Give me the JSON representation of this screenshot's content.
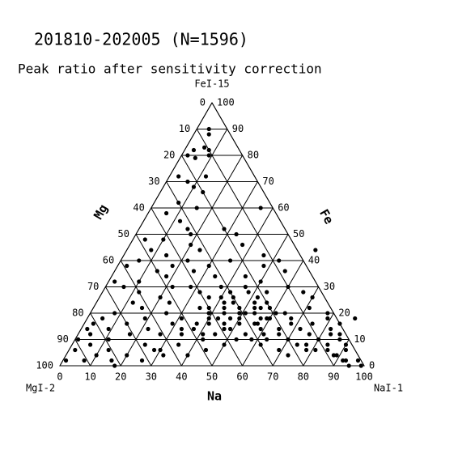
{
  "chart_data": {
    "type": "ternary",
    "title": "201810-202005 (N=1596)",
    "subtitle": "Peak ratio after sensitivity correction",
    "vertex_top": "FeI-15",
    "vertex_left": "MgI-2",
    "vertex_right": "NaI-1",
    "mg_label": "Mg",
    "fe_label": "Fe",
    "na_label": "Na",
    "mg_ticks": [
      0,
      10,
      20,
      30,
      40,
      50,
      60,
      70,
      80,
      90,
      100
    ],
    "fe_ticks": [
      0,
      10,
      20,
      30,
      40,
      50,
      60,
      70,
      80,
      90,
      100
    ],
    "na_ticks": [
      0,
      10,
      20,
      30,
      40,
      50,
      60,
      70,
      80,
      90,
      100
    ],
    "grid": true,
    "color": "#000000",
    "na": [
      4,
      5,
      3,
      6,
      8,
      2,
      5,
      9,
      3,
      7,
      10,
      12,
      14,
      8,
      15,
      6,
      12,
      16,
      18,
      10,
      4,
      20,
      8,
      14,
      22,
      24,
      18,
      26,
      30,
      34,
      36,
      6,
      3,
      2,
      28,
      32,
      38,
      40,
      42,
      24,
      20,
      16,
      12,
      8,
      5,
      3,
      1,
      2,
      4,
      6,
      9,
      11,
      14,
      17,
      19,
      22,
      25,
      27,
      29,
      31,
      33,
      35,
      37,
      39,
      41,
      43,
      45,
      47,
      49,
      51,
      53,
      55,
      57,
      59,
      61,
      63,
      36,
      38,
      40,
      42,
      44,
      46,
      48,
      50,
      52,
      54,
      56,
      58,
      60,
      34,
      37,
      41,
      45,
      49,
      53,
      57,
      61,
      65,
      39,
      43,
      47,
      51,
      55,
      59,
      44,
      48,
      52,
      56,
      46,
      50,
      54,
      42,
      58,
      62,
      66,
      68,
      70,
      72,
      74,
      76,
      78,
      80,
      82,
      84,
      86,
      88,
      90,
      92,
      64,
      67,
      71,
      75,
      79,
      83,
      87,
      91,
      69,
      73,
      77,
      81,
      85,
      89,
      93,
      95,
      97,
      99,
      7,
      10,
      13,
      16,
      20,
      24,
      28,
      32,
      26,
      30,
      35,
      40,
      45,
      50,
      22,
      18,
      14,
      10,
      6,
      33,
      37,
      46,
      52,
      60,
      66,
      70,
      78,
      84,
      88,
      44,
      48,
      56,
      62,
      36,
      28,
      2,
      1,
      12,
      18
    ],
    "fe": [
      90,
      88,
      82,
      83,
      82,
      80,
      79,
      80,
      72,
      70,
      68,
      72,
      66,
      62,
      60,
      58,
      55,
      52,
      50,
      48,
      48,
      46,
      44,
      42,
      40,
      44,
      38,
      36,
      38,
      34,
      40,
      40,
      38,
      32,
      30,
      28,
      30,
      26,
      28,
      24,
      26,
      22,
      24,
      20,
      18,
      16,
      10,
      6,
      12,
      8,
      14,
      10,
      16,
      12,
      18,
      14,
      20,
      12,
      16,
      18,
      14,
      22,
      16,
      20,
      12,
      18,
      24,
      14,
      20,
      16,
      22,
      12,
      18,
      14,
      20,
      10,
      26,
      22,
      18,
      24,
      20,
      16,
      22,
      18,
      24,
      20,
      16,
      22,
      18,
      12,
      14,
      16,
      12,
      14,
      10,
      16,
      12,
      14,
      20,
      22,
      18,
      20,
      22,
      18,
      26,
      28,
      26,
      24,
      30,
      32,
      28,
      10,
      10,
      8,
      12,
      16,
      10,
      14,
      8,
      12,
      6,
      10,
      14,
      8,
      12,
      4,
      8,
      2,
      20,
      18,
      22,
      16,
      18,
      12,
      10,
      6,
      6,
      4,
      8,
      6,
      6,
      4,
      2,
      0,
      2,
      0,
      2,
      4,
      6,
      2,
      4,
      8,
      6,
      4,
      2,
      6,
      8,
      4,
      6,
      8,
      30,
      34,
      36,
      32,
      30,
      50,
      46,
      42,
      40,
      30,
      28,
      26,
      20,
      16,
      18,
      34,
      38,
      36,
      44,
      60,
      52,
      14,
      2,
      28,
      0
    ]
  }
}
